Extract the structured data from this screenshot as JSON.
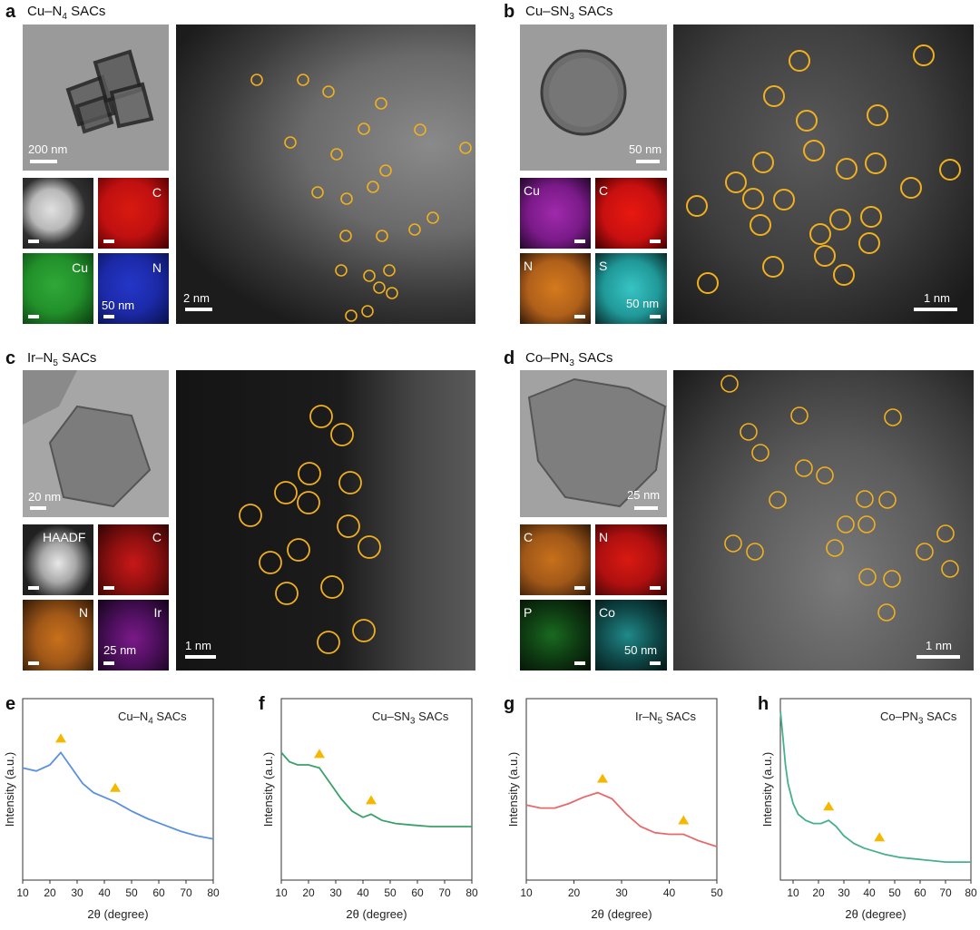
{
  "panels": {
    "a": {
      "label": "a",
      "title_main": "Cu–N",
      "title_sub": "4",
      "title_end": " SACs",
      "scale_tem": "200 nm",
      "scale_map": "50 nm",
      "scale_stem": "2 nm",
      "elements": [
        "C",
        "Cu",
        "N"
      ]
    },
    "b": {
      "label": "b",
      "title_main": "Cu–SN",
      "title_sub": "3",
      "title_end": " SACs",
      "scale_tem": "50 nm",
      "scale_map": "50 nm",
      "scale_stem": "1 nm",
      "elements": [
        "Cu",
        "C",
        "N",
        "S"
      ]
    },
    "c": {
      "label": "c",
      "title_main": "Ir–N",
      "title_sub": "5",
      "title_end": " SACs",
      "scale_tem": "20 nm",
      "scale_map": "25 nm",
      "scale_stem": "1 nm",
      "elements": [
        "HAADF",
        "C",
        "N",
        "Ir"
      ]
    },
    "d": {
      "label": "d",
      "title_main": "Co–PN",
      "title_sub": "3",
      "title_end": " SACs",
      "scale_tem": "25 nm",
      "scale_map": "50 nm",
      "scale_stem": "1 nm",
      "elements": [
        "C",
        "N",
        "P",
        "Co"
      ]
    }
  },
  "colors": {
    "circle": "#f2b01e",
    "triangle": "#f5b800",
    "cu_n4": "#5b8fe0",
    "cu_sn3": "#3aa06a",
    "ir_n5": "#e8686a",
    "co_pn3": "#46b08e",
    "map_red": "#cc1a10",
    "map_green": "#2aa030",
    "map_blue": "#1f2fb8",
    "map_magenta": "#9d2ea8",
    "map_orange": "#c8701c",
    "map_cyan": "#30b8b8"
  },
  "chart_data": [
    {
      "type": "line",
      "label": "e",
      "title_main": "Cu–N",
      "title_sub": "4",
      "title_end": " SACs",
      "xlabel": "2θ (degree)",
      "ylabel": "Intensity (a.u.)",
      "xlim": [
        10,
        80
      ],
      "xticks": [
        10,
        20,
        30,
        40,
        50,
        60,
        70,
        80
      ],
      "x": [
        10,
        15,
        20,
        24,
        28,
        32,
        36,
        40,
        44,
        50,
        56,
        62,
        68,
        74,
        80
      ],
      "y": [
        0.68,
        0.66,
        0.7,
        0.78,
        0.68,
        0.58,
        0.52,
        0.49,
        0.46,
        0.4,
        0.35,
        0.31,
        0.27,
        0.24,
        0.22
      ],
      "peaks": [
        24,
        44
      ]
    },
    {
      "type": "line",
      "label": "f",
      "title_main": "Cu–SN",
      "title_sub": "3",
      "title_end": " SACs",
      "xlabel": "2θ (degree)",
      "ylabel": "Intensity (a.u.)",
      "xlim": [
        10,
        80
      ],
      "xticks": [
        10,
        20,
        30,
        40,
        50,
        60,
        70,
        80
      ],
      "x": [
        10,
        13,
        16,
        20,
        24,
        28,
        32,
        36,
        40,
        43,
        47,
        52,
        58,
        65,
        72,
        80
      ],
      "y": [
        0.78,
        0.72,
        0.7,
        0.7,
        0.68,
        0.58,
        0.48,
        0.4,
        0.36,
        0.38,
        0.34,
        0.32,
        0.31,
        0.3,
        0.3,
        0.3
      ],
      "peaks": [
        24,
        43
      ]
    },
    {
      "type": "line",
      "label": "g",
      "title_main": "Ir–N",
      "title_sub": "5",
      "title_end": " SACs",
      "xlabel": "2θ (degree)",
      "ylabel": "Intensity (a.u.)",
      "xlim": [
        10,
        50
      ],
      "xticks": [
        10,
        20,
        30,
        40,
        50
      ],
      "x": [
        10,
        13,
        16,
        19,
        22,
        25,
        28,
        31,
        34,
        37,
        40,
        43,
        46,
        50
      ],
      "y": [
        0.44,
        0.42,
        0.42,
        0.45,
        0.49,
        0.52,
        0.48,
        0.38,
        0.3,
        0.26,
        0.25,
        0.25,
        0.21,
        0.17
      ],
      "peaks": [
        26,
        43
      ]
    },
    {
      "type": "line",
      "label": "h",
      "title_main": "Co–PN",
      "title_sub": "3",
      "title_end": " SACs",
      "xlabel": "2θ (degree)",
      "ylabel": "Intensity (a.u.)",
      "xlim": [
        5,
        80
      ],
      "xticks": [
        10,
        20,
        30,
        40,
        50,
        60,
        70,
        80
      ],
      "x": [
        5,
        6,
        7,
        8,
        10,
        12,
        15,
        18,
        21,
        24,
        27,
        30,
        34,
        38,
        42,
        46,
        52,
        58,
        64,
        70,
        76,
        80
      ],
      "y": [
        1.05,
        0.88,
        0.7,
        0.58,
        0.45,
        0.38,
        0.34,
        0.32,
        0.32,
        0.34,
        0.3,
        0.24,
        0.19,
        0.16,
        0.14,
        0.12,
        0.1,
        0.09,
        0.08,
        0.07,
        0.07,
        0.07
      ],
      "peaks": [
        24,
        44
      ]
    }
  ]
}
